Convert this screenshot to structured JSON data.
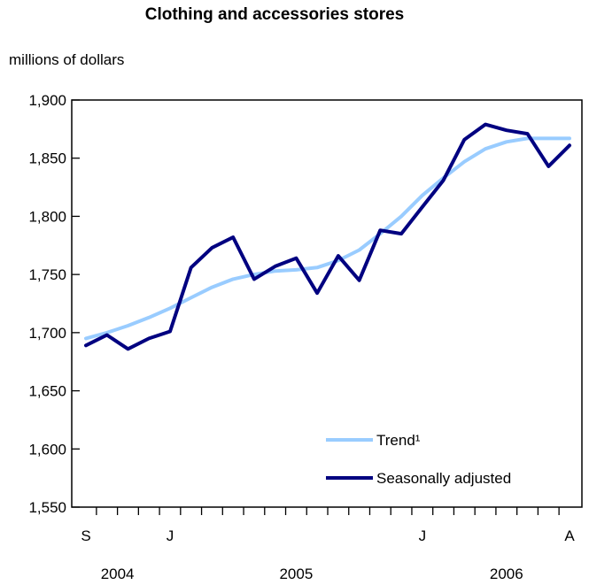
{
  "chart_data": {
    "type": "line",
    "title": "Clothing and accessories stores",
    "ylabel": "millions of dollars",
    "ylim": [
      1550,
      1900
    ],
    "yticks": [
      1550,
      1600,
      1650,
      1700,
      1750,
      1800,
      1850,
      1900
    ],
    "ytick_labels": [
      "1,550",
      "1,600",
      "1,650",
      "1,700",
      "1,750",
      "1,800",
      "1,850",
      "1,900"
    ],
    "x": [
      "2004-09",
      "2004-10",
      "2004-11",
      "2004-12",
      "2005-01",
      "2005-02",
      "2005-03",
      "2005-04",
      "2005-05",
      "2005-06",
      "2005-07",
      "2005-08",
      "2005-09",
      "2005-10",
      "2005-11",
      "2005-12",
      "2006-01",
      "2006-02",
      "2006-03",
      "2006-04",
      "2006-05",
      "2006-06",
      "2006-07",
      "2006-08"
    ],
    "month_labels": [
      {
        "index": 0,
        "text": "S"
      },
      {
        "index": 4,
        "text": "J"
      },
      {
        "index": 16,
        "text": "J"
      },
      {
        "index": 23,
        "text": "A"
      }
    ],
    "year_labels": [
      {
        "center_index": 1.5,
        "text": "2004"
      },
      {
        "center_index": 10,
        "text": "2005"
      },
      {
        "center_index": 20,
        "text": "2006"
      }
    ],
    "series": [
      {
        "name": "Trend¹",
        "color": "#99ccff",
        "values": [
          1695,
          1700,
          1706,
          1713,
          1721,
          1730,
          1739,
          1746,
          1750,
          1753,
          1754,
          1756,
          1762,
          1771,
          1785,
          1800,
          1818,
          1833,
          1847,
          1858,
          1864,
          1867,
          1867,
          1867
        ]
      },
      {
        "name": "Seasonally adjusted",
        "color": "#000080",
        "values": [
          1689,
          1698,
          1686,
          1695,
          1701,
          1756,
          1773,
          1782,
          1746,
          1757,
          1764,
          1734,
          1766,
          1745,
          1788,
          1785,
          1808,
          1831,
          1866,
          1879,
          1874,
          1871,
          1843,
          1861
        ]
      }
    ],
    "legend_position": "bottom-right",
    "grid": false
  }
}
